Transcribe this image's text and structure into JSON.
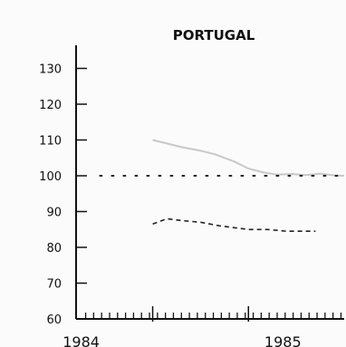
{
  "chart_data": {
    "type": "line",
    "title": "PORTUGAL",
    "xlabel": "",
    "ylabel": "",
    "ylim": [
      60,
      130
    ],
    "yticks": [
      60,
      70,
      80,
      90,
      100,
      110,
      120,
      130
    ],
    "xlim": [
      1983.2,
      1986.0
    ],
    "xticks": [
      {
        "value": 1984,
        "label": "1984"
      },
      {
        "value": 1985,
        "label": "1985"
      }
    ],
    "grid": false,
    "legend": "none",
    "series": [
      {
        "style": "solid-light",
        "color": "#c8c8c8",
        "x": [
          1984.0,
          1984.15,
          1984.3,
          1984.5,
          1984.65,
          1984.85,
          1985.0,
          1985.15,
          1985.3,
          1985.45,
          1985.6,
          1985.75,
          1985.9,
          1986.0
        ],
        "y": [
          110,
          109,
          108,
          107,
          106,
          104,
          102,
          101,
          100.3,
          100.5,
          100.2,
          100.6,
          100.1,
          100
        ]
      },
      {
        "style": "dotted",
        "color": "#222222",
        "x": [
          1983.45,
          1986.0
        ],
        "y": [
          100,
          100
        ]
      },
      {
        "style": "dashed",
        "color": "#222222",
        "x": [
          1984.0,
          1984.15,
          1984.3,
          1984.5,
          1984.7,
          1984.85,
          1985.0,
          1985.2,
          1985.4,
          1985.55,
          1985.7
        ],
        "y": [
          86.5,
          88,
          87.5,
          87,
          86,
          85.5,
          85,
          85,
          84.5,
          84.5,
          84.5
        ]
      }
    ]
  }
}
